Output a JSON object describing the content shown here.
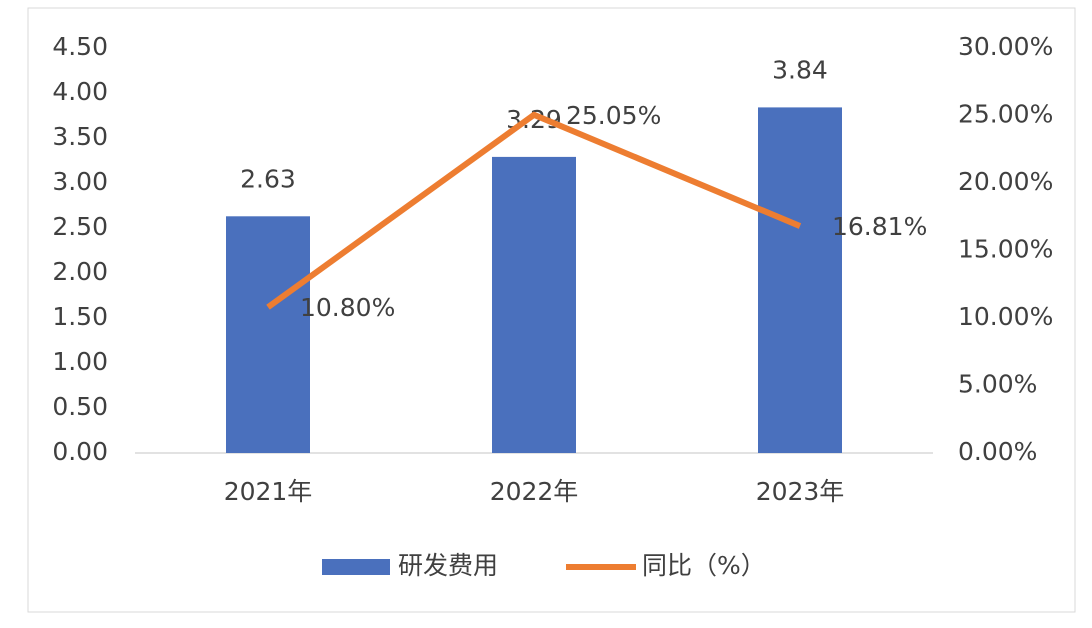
{
  "chart_data": {
    "type": "bar",
    "categories": [
      "2021年",
      "2022年",
      "2023年"
    ],
    "series": [
      {
        "name": "研发费用",
        "type": "bar",
        "color": "#4a70bd",
        "values": [
          2.63,
          3.29,
          3.84
        ]
      },
      {
        "name": "同比（%）",
        "type": "line",
        "axis": "y2",
        "color": "#ed7d31",
        "values": [
          10.8,
          25.05,
          16.81
        ],
        "value_labels": [
          "10.80%",
          "25.05%",
          "16.81%"
        ]
      }
    ],
    "ylim": [
      0,
      4.5
    ],
    "yticks": [
      {
        "value": 0,
        "label": "0.00"
      },
      {
        "value": 0.5,
        "label": "0.50"
      },
      {
        "value": 1,
        "label": "1.00"
      },
      {
        "value": 1.5,
        "label": "1.50"
      },
      {
        "value": 2,
        "label": "2.00"
      },
      {
        "value": 2.5,
        "label": "2.50"
      },
      {
        "value": 3,
        "label": "3.00"
      },
      {
        "value": 3.5,
        "label": "3.50"
      },
      {
        "value": 4,
        "label": "4.00"
      },
      {
        "value": 4.5,
        "label": "4.50"
      }
    ],
    "y2lim": [
      0,
      30
    ],
    "y2ticks": [
      {
        "value": 0,
        "label": "0.00%"
      },
      {
        "value": 5,
        "label": "5.00%"
      },
      {
        "value": 10,
        "label": "10.00%"
      },
      {
        "value": 15,
        "label": "15.00%"
      },
      {
        "value": 20,
        "label": "20.00%"
      },
      {
        "value": 25,
        "label": "25.00%"
      },
      {
        "value": 30,
        "label": "30.00%"
      }
    ],
    "grid": false,
    "legend": "bottom"
  }
}
